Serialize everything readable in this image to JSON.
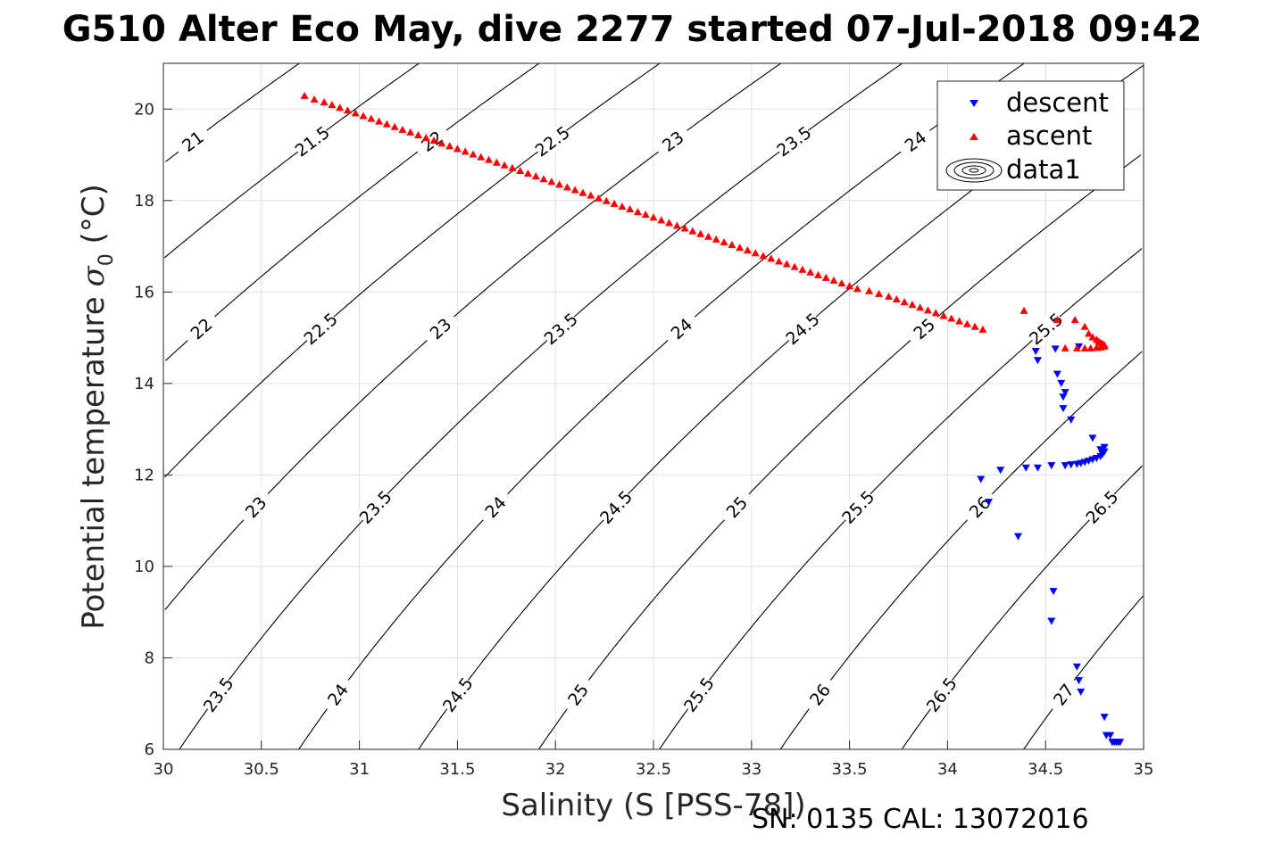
{
  "chart_data": {
    "type": "scatter",
    "title": "G510 Alter Eco May, dive 2277 started 07-Jul-2018 09:42",
    "xlabel": "Salinity (S [PSS-78])",
    "ylabel": "Potential temperature σ₀ (°C)",
    "ylabel_main": "Potential temperature ",
    "ylabel_sigma": "σ",
    "ylabel_sub": "0",
    "ylabel_unit": " (°C)",
    "footer": "SN: 0135  CAL: 13072016",
    "xlim": [
      30,
      35
    ],
    "ylim": [
      6,
      21
    ],
    "xticks": [
      "30",
      "30.5",
      "31",
      "31.5",
      "32",
      "32.5",
      "33",
      "33.5",
      "34",
      "34.5",
      "35"
    ],
    "yticks": [
      "6",
      "8",
      "10",
      "12",
      "14",
      "16",
      "18",
      "20"
    ],
    "grid": true,
    "legend": {
      "placement": "top-right",
      "entries": [
        "descent",
        "ascent",
        "data1"
      ]
    },
    "colors": {
      "descent": "#0000ff",
      "ascent": "#ff0000",
      "contour": "#000000"
    },
    "series": [
      {
        "name": "descent",
        "marker": "triangle-down",
        "x": [
          34.17,
          34.21,
          34.27,
          34.36,
          34.4,
          34.46,
          34.53,
          34.6,
          34.63,
          34.66,
          34.68,
          34.7,
          34.72,
          34.74,
          34.76,
          34.78,
          34.79,
          34.8,
          34.8,
          34.78,
          34.74,
          34.46,
          34.45,
          34.55,
          34.56,
          34.58,
          34.59,
          34.6,
          34.59,
          34.63,
          34.67,
          34.54,
          34.53,
          34.66,
          34.67,
          34.68,
          34.8,
          34.81,
          34.83,
          34.84,
          34.85,
          34.86,
          34.87,
          34.88
        ],
        "y": [
          11.9,
          11.4,
          12.1,
          10.65,
          12.15,
          12.15,
          12.2,
          12.2,
          12.22,
          12.23,
          12.25,
          12.27,
          12.3,
          12.33,
          12.36,
          12.4,
          12.45,
          12.5,
          12.6,
          12.55,
          12.8,
          14.5,
          14.7,
          14.75,
          14.2,
          14.0,
          13.7,
          13.8,
          13.45,
          13.2,
          14.8,
          9.45,
          8.8,
          7.8,
          7.5,
          7.25,
          6.7,
          6.3,
          6.3,
          6.15,
          6.15,
          6.15,
          6.15,
          6.15
        ]
      },
      {
        "name": "ascent",
        "marker": "triangle-up",
        "x": [
          30.72,
          30.77,
          30.82,
          30.86,
          30.9,
          30.94,
          30.98,
          31.02,
          31.06,
          31.1,
          31.14,
          31.18,
          31.22,
          31.26,
          31.3,
          31.34,
          31.38,
          31.42,
          31.46,
          31.5,
          31.54,
          31.58,
          31.62,
          31.66,
          31.7,
          31.74,
          31.78,
          31.82,
          31.86,
          31.9,
          31.94,
          31.98,
          32.02,
          32.06,
          32.1,
          32.14,
          32.18,
          32.22,
          32.26,
          32.3,
          32.34,
          32.38,
          32.42,
          32.46,
          32.5,
          32.54,
          32.58,
          32.62,
          32.66,
          32.7,
          32.74,
          32.78,
          32.82,
          32.86,
          32.9,
          32.94,
          32.98,
          33.02,
          33.06,
          33.1,
          33.14,
          33.18,
          33.22,
          33.26,
          33.3,
          33.34,
          33.38,
          33.42,
          33.46,
          33.5,
          33.54,
          33.6,
          33.65,
          33.7,
          33.74,
          33.78,
          33.82,
          33.86,
          33.9,
          33.94,
          33.98,
          34.02,
          34.06,
          34.1,
          34.14,
          34.18,
          34.39,
          34.56,
          34.65,
          34.7,
          34.72,
          34.74,
          34.76,
          34.77,
          34.78,
          34.79,
          34.8,
          34.8,
          34.78,
          34.76,
          34.73,
          34.7,
          34.66,
          34.6
        ],
        "y": [
          20.3,
          20.22,
          20.16,
          20.1,
          20.04,
          19.98,
          19.92,
          19.86,
          19.8,
          19.74,
          19.68,
          19.62,
          19.56,
          19.5,
          19.44,
          19.38,
          19.32,
          19.26,
          19.2,
          19.14,
          19.08,
          19.02,
          18.96,
          18.9,
          18.84,
          18.78,
          18.72,
          18.66,
          18.6,
          18.54,
          18.48,
          18.42,
          18.36,
          18.3,
          18.24,
          18.18,
          18.12,
          18.06,
          18.0,
          17.94,
          17.88,
          17.82,
          17.76,
          17.7,
          17.64,
          17.58,
          17.52,
          17.46,
          17.4,
          17.34,
          17.28,
          17.22,
          17.16,
          17.1,
          17.04,
          16.98,
          16.92,
          16.86,
          16.8,
          16.74,
          16.68,
          16.62,
          16.56,
          16.5,
          16.44,
          16.38,
          16.32,
          16.26,
          16.2,
          16.14,
          16.08,
          16.03,
          15.97,
          15.91,
          15.85,
          15.79,
          15.73,
          15.67,
          15.61,
          15.55,
          15.49,
          15.43,
          15.37,
          15.31,
          15.25,
          15.19,
          15.6,
          15.4,
          15.4,
          15.25,
          15.1,
          15.02,
          14.97,
          14.93,
          14.9,
          14.88,
          14.85,
          14.82,
          14.8,
          14.79,
          14.78,
          14.78,
          14.78,
          14.78
        ]
      }
    ],
    "contours": {
      "name": "data1",
      "labels": [
        "21",
        "21.5",
        "22",
        "22.5",
        "23",
        "23.5",
        "24",
        "24.5",
        "25",
        "25.5",
        "26",
        "26.5",
        "27"
      ]
    }
  }
}
